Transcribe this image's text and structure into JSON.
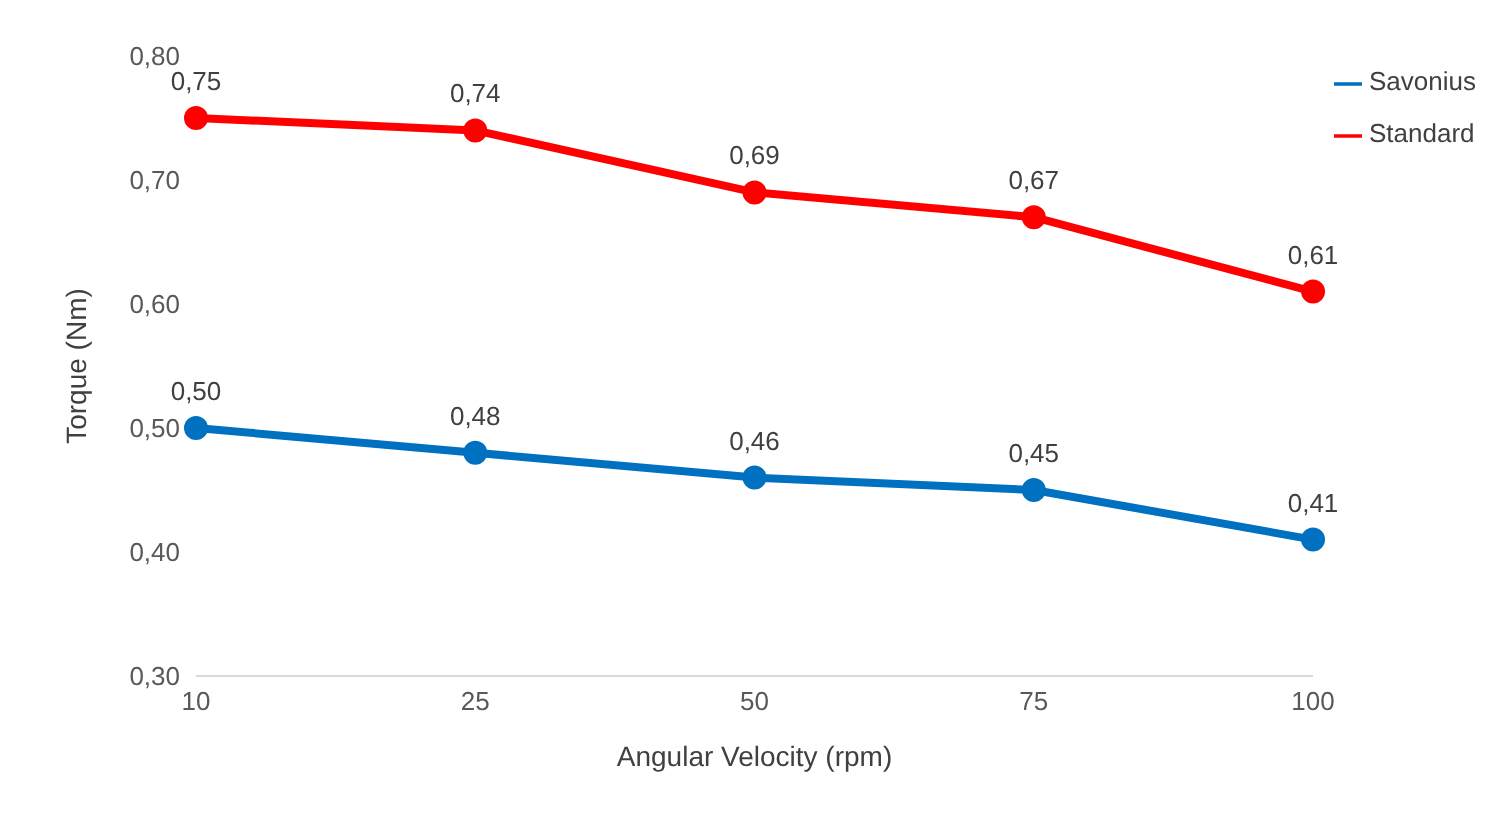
{
  "chart_data": {
    "type": "line",
    "xlabel": "Angular Velocity (rpm)",
    "ylabel": "Torque (Nm)",
    "categories": [
      "10",
      "25",
      "50",
      "75",
      "100"
    ],
    "series": [
      {
        "name": "Standard",
        "color": "#ff0000",
        "values": [
          0.75,
          0.74,
          0.69,
          0.67,
          0.61
        ],
        "value_labels": [
          "0,75",
          "0,74",
          "0,69",
          "0,67",
          "0,61"
        ]
      },
      {
        "name": "Savonius",
        "color": "#0070c0",
        "values": [
          0.5,
          0.48,
          0.46,
          0.45,
          0.41
        ],
        "value_labels": [
          "0,50",
          "0,48",
          "0,46",
          "0,45",
          "0,41"
        ]
      }
    ],
    "ylim": [
      0.3,
      0.8
    ],
    "yticks": [
      {
        "value": 0.3,
        "label": "0,30"
      },
      {
        "value": 0.4,
        "label": "0,40"
      },
      {
        "value": 0.5,
        "label": "0,50"
      },
      {
        "value": 0.6,
        "label": "0,60"
      },
      {
        "value": 0.7,
        "label": "0,70"
      },
      {
        "value": 0.8,
        "label": "0,80"
      }
    ],
    "grid": false,
    "legend": "top right",
    "marker": "circle",
    "line_style": "solid"
  }
}
